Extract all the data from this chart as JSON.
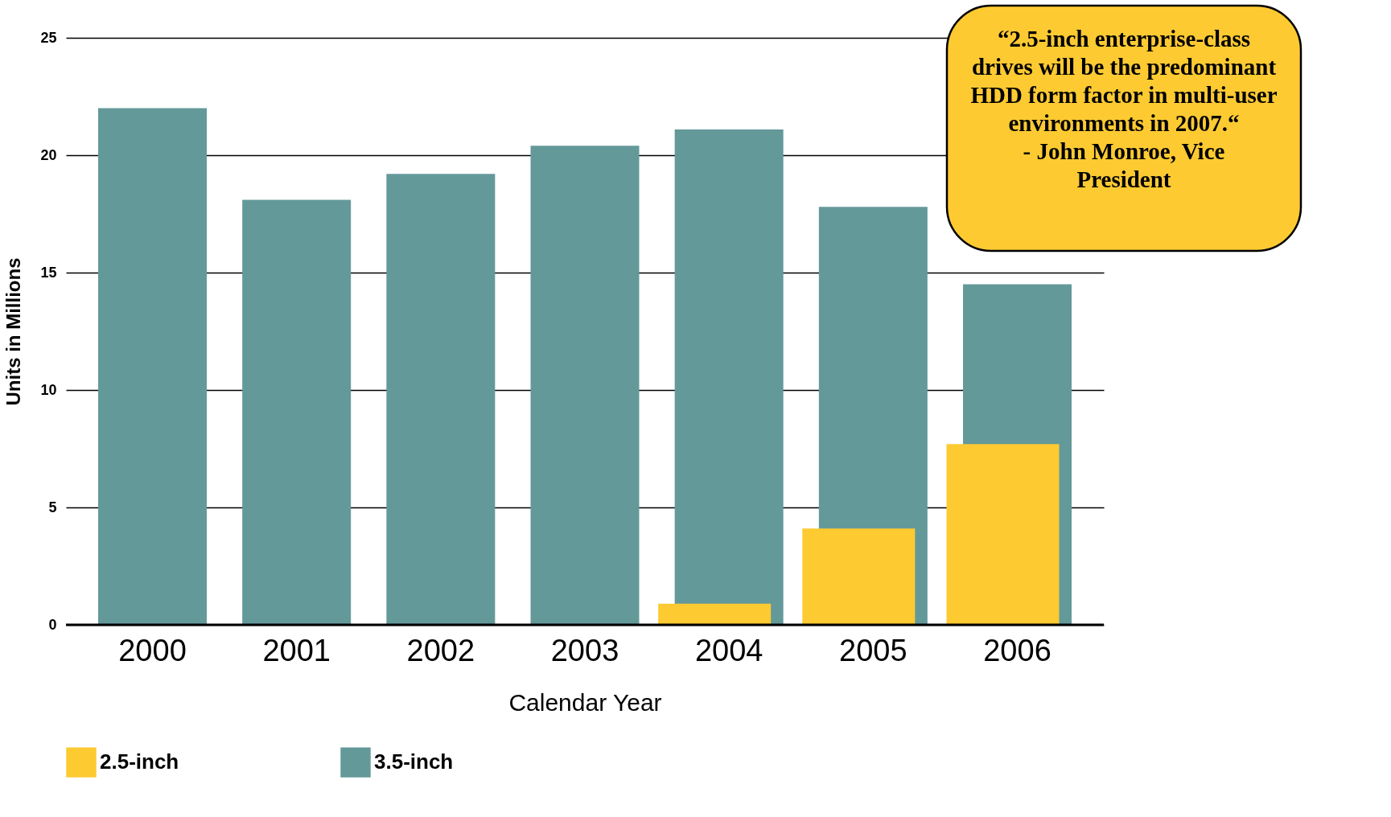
{
  "chart_data": {
    "type": "bar",
    "xlabel": "Calendar Year",
    "ylabel": "Units in Millions",
    "categories": [
      "2000",
      "2001",
      "2002",
      "2003",
      "2004",
      "2005",
      "2006"
    ],
    "series": [
      {
        "name": "2.5-inch",
        "color": "#fdca32",
        "values": [
          null,
          null,
          null,
          null,
          0.9,
          4.1,
          7.7
        ]
      },
      {
        "name": "3.5-inch",
        "color": "#64999a",
        "values": [
          22.0,
          18.1,
          19.2,
          20.4,
          21.1,
          17.8,
          14.5
        ]
      }
    ],
    "ylim": [
      0,
      25
    ],
    "yticks": [
      0,
      5,
      10,
      15,
      20,
      25
    ],
    "grid": "y",
    "legend": "bottom",
    "annotations": [
      "“2.5-inch enterprise-class drives will be the predominant HDD form factor in multi-user environments in 2007.“",
      "- John Monroe, Vice President"
    ]
  }
}
